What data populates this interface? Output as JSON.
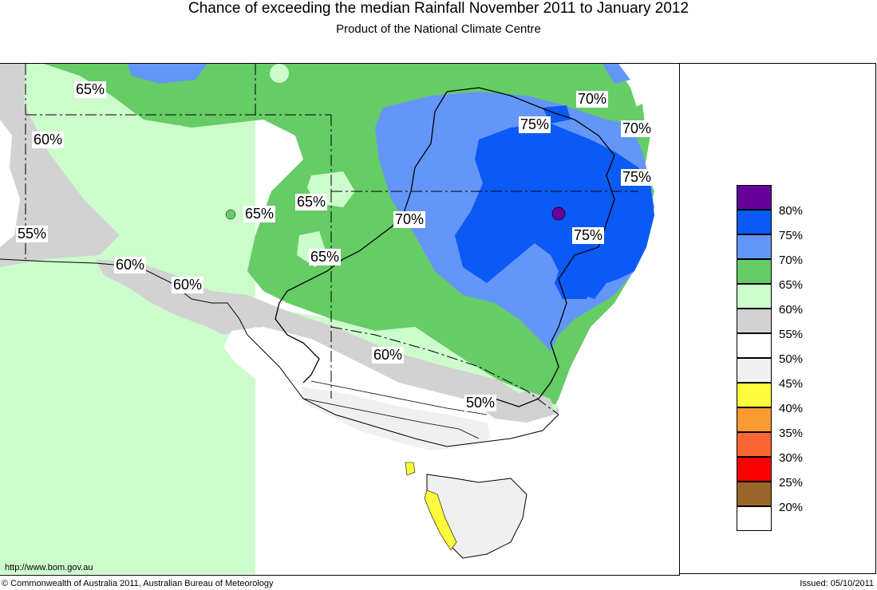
{
  "title": "Chance of exceeding the median Rainfall November 2011 to January 2012",
  "subtitle": "Product of the National Climate Centre",
  "footer": {
    "url": "http://www.bom.gov.au",
    "copyright": "© Commonwealth of Australia 2011, Australian Bureau of Meteorology",
    "issued": "Issued: 05/10/2011"
  },
  "legend": [
    {
      "label": "80%",
      "color": "#66039a"
    },
    {
      "label": "75%",
      "color": "#0b5af5"
    },
    {
      "label": "70%",
      "color": "#6396f8"
    },
    {
      "label": "65%",
      "color": "#66cc66"
    },
    {
      "label": "60%",
      "color": "#ccfccc"
    },
    {
      "label": "55%",
      "color": "#d2d2d2"
    },
    {
      "label": "50%",
      "color": "#ffffff"
    },
    {
      "label": "45%",
      "color": "#f0f0f0"
    },
    {
      "label": "40%",
      "color": "#fcfc3c"
    },
    {
      "label": "35%",
      "color": "#fc9a32"
    },
    {
      "label": "30%",
      "color": "#fc6632"
    },
    {
      "label": "25%",
      "color": "#fc0000"
    },
    {
      "label": "20%",
      "color": "#9a6628"
    },
    {
      "label": "",
      "color": "#ffffff"
    }
  ],
  "contour_labels": [
    {
      "id": "wa-65",
      "text": "65%"
    },
    {
      "id": "wa-60",
      "text": "60%"
    },
    {
      "id": "sa-55",
      "text": "55%"
    },
    {
      "id": "sa-60-a",
      "text": "60%"
    },
    {
      "id": "sa-60-b",
      "text": "60%"
    },
    {
      "id": "central-65-a",
      "text": "65%"
    },
    {
      "id": "central-65-b",
      "text": "65%"
    },
    {
      "id": "central-65-c",
      "text": "65%"
    },
    {
      "id": "central-70",
      "text": "70%"
    },
    {
      "id": "qld-75",
      "text": "75%"
    },
    {
      "id": "coast-70-a",
      "text": "70%"
    },
    {
      "id": "coast-70-b",
      "text": "70%"
    },
    {
      "id": "coast-75",
      "text": "75%"
    },
    {
      "id": "nsw-75",
      "text": "75%"
    },
    {
      "id": "vic-60",
      "text": "60%"
    },
    {
      "id": "vic-50",
      "text": "50%"
    }
  ]
}
